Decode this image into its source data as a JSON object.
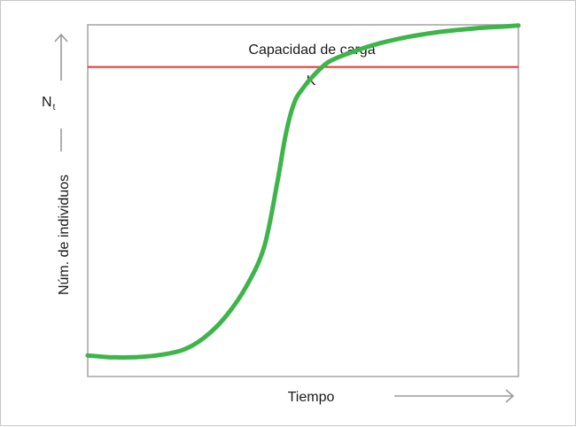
{
  "chart_data": {
    "type": "line",
    "title": "",
    "xlabel": "Tiempo",
    "ylabel": "Núm. de individuos",
    "ylabel_symbol": {
      "base": "N",
      "subscript": "t"
    },
    "xlim": [
      0,
      100
    ],
    "ylim": [
      0,
      100
    ],
    "grid": false,
    "legend": "none",
    "carrying_capacity": {
      "label": "Capacidad de carga",
      "symbol": "K",
      "value": 88,
      "color": "#e8322e"
    },
    "series": [
      {
        "color": "#3db54a",
        "x": [
          0,
          5,
          11,
          16,
          22,
          27,
          32,
          37,
          41,
          44,
          46,
          48,
          50,
          52,
          56,
          62,
          68,
          75,
          82,
          90,
          95,
          100
        ],
        "y": [
          6,
          5.5,
          5.5,
          6,
          7.5,
          11,
          17,
          26,
          37,
          55,
          69,
          78,
          82,
          85,
          89.5,
          92.5,
          94.8,
          96.7,
          98,
          99,
          99.4,
          99.8
        ]
      }
    ]
  }
}
